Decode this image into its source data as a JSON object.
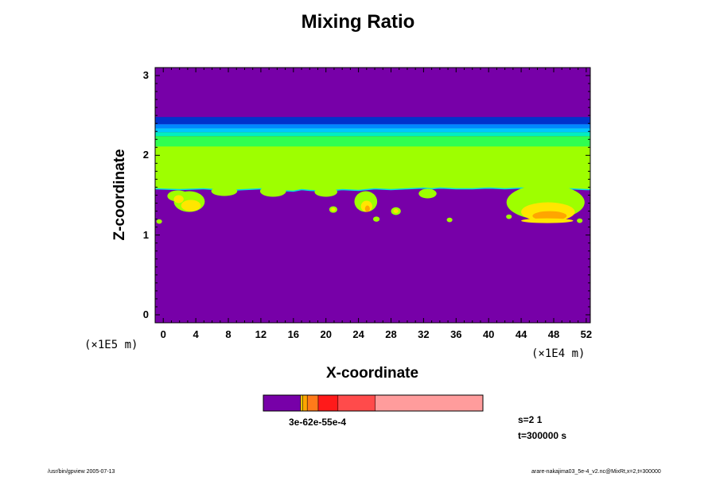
{
  "chart_data": {
    "type": "heatmap",
    "title": "Mixing Ratio",
    "xlabel": "X-coordinate",
    "ylabel": "Z-coordinate",
    "x_unit": "(×1E4 m)",
    "y_unit": "(×1E5 m)",
    "xlim": [
      -1,
      52.5
    ],
    "ylim": [
      -0.1,
      3.1
    ],
    "x_ticks": [
      "0",
      "4",
      "8",
      "12",
      "16",
      "20",
      "24",
      "28",
      "32",
      "36",
      "40",
      "44",
      "48",
      "52"
    ],
    "y_ticks": [
      "0",
      "1",
      "2",
      "3"
    ],
    "background_color": "#7700a8",
    "colorbar": {
      "colors": [
        "#7700a8",
        "#ffd700",
        "#ffa500",
        "#ff7a1a",
        "#ff1a1a",
        "#ff4b4b",
        "#ff9c9c"
      ],
      "fractions": [
        0.17,
        0.01,
        0.02,
        0.05,
        0.09,
        0.17,
        0.49
      ],
      "tick_label": "3e-62e-55e-4"
    },
    "bands": [
      {
        "z0": 2.39,
        "z1": 2.48,
        "color": "#0033cc"
      },
      {
        "z0": 2.34,
        "z1": 2.39,
        "color": "#0088ff"
      },
      {
        "z0": 2.29,
        "z1": 2.34,
        "color": "#00c8ff"
      },
      {
        "z0": 2.24,
        "z1": 2.29,
        "color": "#00f0c0"
      },
      {
        "z0": 2.1,
        "z1": 2.24,
        "color": "#30ff50"
      },
      {
        "z0": 1.58,
        "z1": 2.1,
        "color": "#9eff00"
      }
    ],
    "cloud_base_profile": {
      "x": [
        -1,
        2,
        5,
        8,
        10,
        12,
        14,
        16,
        17,
        18,
        20,
        22,
        24,
        25,
        26,
        28,
        30,
        32,
        33,
        34,
        36,
        38,
        40,
        42,
        44,
        46,
        48,
        50,
        52,
        52.5
      ],
      "z": [
        1.58,
        1.57,
        1.58,
        1.56,
        1.57,
        1.58,
        1.56,
        1.55,
        1.57,
        1.56,
        1.55,
        1.57,
        1.56,
        1.57,
        1.58,
        1.57,
        1.58,
        1.59,
        1.58,
        1.59,
        1.58,
        1.58,
        1.59,
        1.58,
        1.59,
        1.58,
        1.57,
        1.58,
        1.57,
        1.57
      ]
    },
    "cloud_blobs": [
      {
        "x": 1.8,
        "z": 1.49,
        "rx": 1.3,
        "rz": 0.07,
        "color": "#9eff00"
      },
      {
        "x": 3.2,
        "z": 1.42,
        "rx": 1.9,
        "rz": 0.13,
        "color": "#9eff00"
      },
      {
        "x": 3.4,
        "z": 1.37,
        "rx": 1.2,
        "rz": 0.07,
        "color": "#ffe600"
      },
      {
        "x": 1.9,
        "z": 1.45,
        "rx": 0.6,
        "rz": 0.05,
        "color": "#ffe600"
      },
      {
        "x": 7.5,
        "z": 1.55,
        "rx": 1.6,
        "rz": 0.06,
        "color": "#9eff00"
      },
      {
        "x": 13.5,
        "z": 1.55,
        "rx": 1.6,
        "rz": 0.07,
        "color": "#9eff00"
      },
      {
        "x": 20,
        "z": 1.54,
        "rx": 1.4,
        "rz": 0.06,
        "color": "#9eff00"
      },
      {
        "x": 24.9,
        "z": 1.42,
        "rx": 1.4,
        "rz": 0.13,
        "color": "#9eff00"
      },
      {
        "x": 25,
        "z": 1.36,
        "rx": 0.7,
        "rz": 0.07,
        "color": "#ffe600"
      },
      {
        "x": 25.1,
        "z": 1.33,
        "rx": 0.3,
        "rz": 0.04,
        "color": "#ffa500"
      },
      {
        "x": 32.5,
        "z": 1.52,
        "rx": 1.1,
        "rz": 0.06,
        "color": "#9eff00"
      },
      {
        "x": 47,
        "z": 1.41,
        "rx": 4.8,
        "rz": 0.22,
        "color": "#9eff00"
      },
      {
        "x": 47.3,
        "z": 1.29,
        "rx": 3.3,
        "rz": 0.12,
        "color": "#ffe600"
      },
      {
        "x": 47.5,
        "z": 1.24,
        "rx": 2.1,
        "rz": 0.06,
        "color": "#ffa500"
      },
      {
        "x": 47.2,
        "z": 1.18,
        "rx": 3.2,
        "rz": 0.03,
        "color": "#ffe600"
      }
    ],
    "cloud_specks": [
      {
        "x": -0.5,
        "z": 1.17,
        "r": 0.35,
        "color": "#9eff00"
      },
      {
        "x": 20.9,
        "z": 1.32,
        "r": 0.5,
        "color": "#9eff00"
      },
      {
        "x": 20.9,
        "z": 1.32,
        "r": 0.25,
        "color": "#ffe600"
      },
      {
        "x": 26.2,
        "z": 1.2,
        "r": 0.4,
        "color": "#9eff00"
      },
      {
        "x": 28.6,
        "z": 1.3,
        "r": 0.6,
        "color": "#9eff00"
      },
      {
        "x": 28.6,
        "z": 1.3,
        "r": 0.3,
        "color": "#ffe600"
      },
      {
        "x": 35.2,
        "z": 1.19,
        "r": 0.35,
        "color": "#9eff00"
      },
      {
        "x": 42.5,
        "z": 1.23,
        "r": 0.35,
        "color": "#9eff00"
      },
      {
        "x": 51.2,
        "z": 1.18,
        "r": 0.35,
        "color": "#9eff00"
      }
    ]
  },
  "info": {
    "line1": "s=2 1",
    "line2": "t=300000 s"
  },
  "footer": {
    "left": "/usr/bin/gpview 2005-07-13",
    "right": "arare-nakajima03_5e-4_v2.nc@MixRt,x=2,t=300000"
  }
}
